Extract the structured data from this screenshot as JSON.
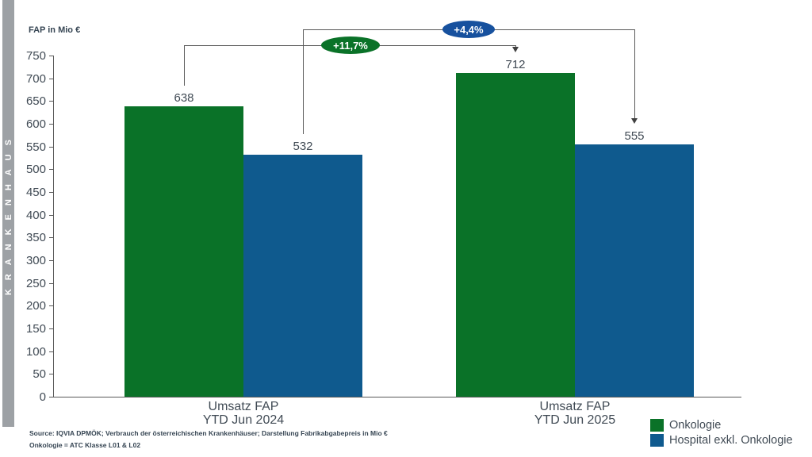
{
  "sidebar": {
    "label": "KRANKENHAUS",
    "bg": "#9DA1A5"
  },
  "chart_data": {
    "type": "bar",
    "title": "",
    "ylabel": "FAP in Mio €",
    "xlabel": "",
    "ylim": [
      0,
      750
    ],
    "yticks": [
      0,
      50,
      100,
      150,
      200,
      250,
      300,
      350,
      400,
      450,
      500,
      550,
      600,
      650,
      700,
      750
    ],
    "grid": false,
    "legend_position": "bottom-right",
    "categories": [
      {
        "line1": "Umsatz FAP",
        "line2": "YTD Jun 2024"
      },
      {
        "line1": "Umsatz FAP",
        "line2": "YTD Jun 2025"
      }
    ],
    "series": [
      {
        "name": "Onkologie",
        "color": "#0A7228",
        "values": [
          638,
          712
        ]
      },
      {
        "name": "Hospital exkl. Onkologie",
        "color": "#0F5A8E",
        "values": [
          532,
          555
        ]
      }
    ],
    "annotations": [
      {
        "label": "+11,7%",
        "color": "#0A7228",
        "series": "Onkologie",
        "from": 638,
        "to": 712
      },
      {
        "label": "+4,4%",
        "color": "#17519E",
        "series": "Hospital exkl. Onkologie",
        "from": 532,
        "to": 555
      }
    ]
  },
  "legend": {
    "items": [
      {
        "label": "Onkologie",
        "color": "#0A7228"
      },
      {
        "label": "Hospital exkl. Onkologie",
        "color": "#0F5A8E"
      }
    ]
  },
  "footer": {
    "line1": "Source: IQVIA DPMÖK; Verbrauch der österreichischen Krankenhäuser; Darstellung Fabrikabgabepreis in Mio €",
    "line2": "Onkologie = ATC Klasse L01 & L02"
  }
}
